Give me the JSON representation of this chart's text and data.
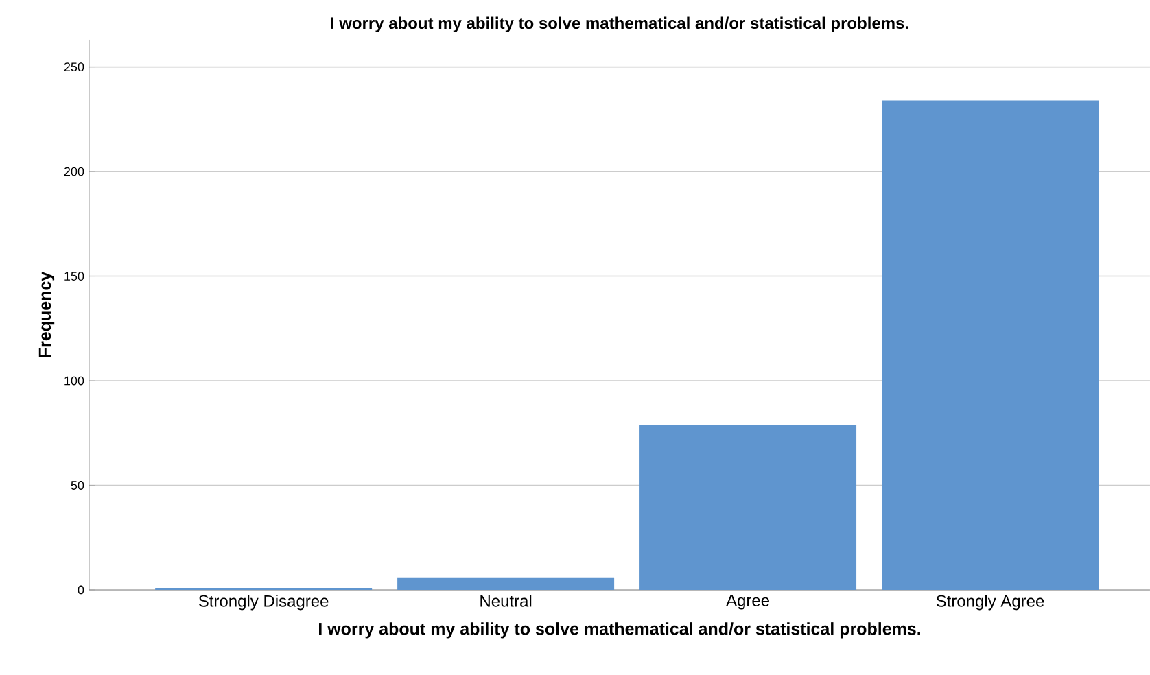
{
  "chart_data": {
    "type": "bar",
    "title": "I worry about my ability to solve mathematical and/or statistical problems.",
    "xlabel": "I worry about my ability to solve mathematical and/or statistical problems.",
    "ylabel": "Frequency",
    "categories": [
      "Strongly Disagree",
      "Neutral",
      "Agree",
      "Strongly Agree"
    ],
    "values": [
      1,
      6,
      79,
      234
    ],
    "color": "#5f95cf",
    "ylim": [
      0,
      263
    ],
    "yticks": [
      0,
      50,
      100,
      150,
      200,
      250
    ],
    "grid": "y"
  }
}
